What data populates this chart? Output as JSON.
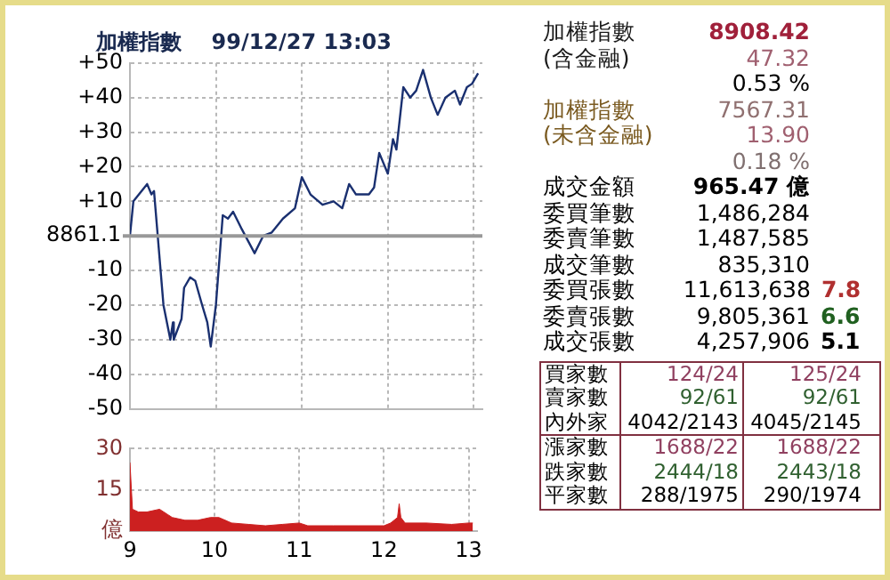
{
  "chart_data": [
    {
      "type": "line",
      "title": "加權指數    99/12/27 13:03",
      "series": [
        {
          "color": "#1a3070",
          "x": [
            9.0,
            9.04,
            9.2,
            9.25,
            9.28,
            9.39,
            9.47,
            9.5,
            9.51,
            9.6,
            9.63,
            9.7,
            9.76,
            9.84,
            9.9,
            9.94,
            10.0,
            10.08,
            10.14,
            10.2,
            10.3,
            10.45,
            10.55,
            10.65,
            10.78,
            10.92,
            11.0,
            11.1,
            11.24,
            11.37,
            11.47,
            11.55,
            11.63,
            11.78,
            11.84,
            11.9,
            12.0,
            12.06,
            12.1,
            12.18,
            12.26,
            12.33,
            12.41,
            12.5,
            12.58,
            12.67,
            12.78,
            12.84,
            12.92,
            12.98,
            13.05
          ],
          "values": [
            0,
            10,
            15,
            12,
            13,
            -20,
            -30,
            -25,
            -30,
            -24,
            -15,
            -12,
            -13,
            -20,
            -25,
            -32,
            -20,
            6,
            5,
            7,
            2,
            -5,
            0,
            1,
            5,
            8,
            17,
            12,
            9,
            10,
            8,
            15,
            12,
            12,
            14,
            24,
            18,
            28,
            25,
            43,
            40,
            42,
            48,
            40,
            35,
            40,
            42,
            38,
            43,
            44,
            47
          ]
        }
      ],
      "xlim": [
        9,
        13.1
      ],
      "xticks": [
        9,
        10,
        11,
        12,
        13
      ],
      "ylabel": "8861.1",
      "ylim": [
        -50,
        50
      ],
      "yticks": [
        {
          "value": 50,
          "label": "+50"
        },
        {
          "value": 40,
          "label": "+40"
        },
        {
          "value": 30,
          "label": "+30"
        },
        {
          "value": 20,
          "label": "+20"
        },
        {
          "value": 10,
          "label": "+10"
        },
        {
          "value": 0,
          "label": null
        },
        -10,
        -20,
        -30,
        -40,
        -50
      ],
      "ref_lines": [
        {
          "axis": "y",
          "value": 0,
          "color": "#999999"
        }
      ],
      "grid": true,
      "tick_labels": "y",
      "legend": false
    },
    {
      "type": "area",
      "series": [
        {
          "color": "#cc2020",
          "x": [
            9.0,
            9.03,
            9.1,
            9.2,
            9.35,
            9.45,
            9.5,
            9.65,
            9.8,
            9.95,
            10.05,
            10.2,
            10.4,
            10.6,
            10.8,
            11.0,
            11.1,
            11.4,
            11.7,
            12.0,
            12.08,
            12.12,
            12.16,
            12.18,
            12.2,
            12.25,
            12.5,
            12.8,
            13.0,
            13.05
          ],
          "values": [
            25,
            8,
            7,
            7,
            8,
            6,
            5,
            4,
            4,
            5,
            5,
            3,
            2.5,
            2,
            2.5,
            3,
            2,
            2,
            2,
            2,
            3,
            4,
            5,
            10,
            5,
            3,
            3,
            2.5,
            3,
            3
          ]
        }
      ],
      "xlim": [
        9,
        13.1
      ],
      "xticks": [
        9,
        10,
        11,
        12,
        13
      ],
      "ylim": [
        0,
        30
      ],
      "yticks": [
        {
          "value": 0,
          "label": "億"
        },
        15,
        30
      ],
      "grid": true,
      "legend": false
    },
    {
      "type": "other",
      "annotations": [
        "加權指數",
        "8908.42",
        "(含金融)",
        "47.32",
        "0.53 %",
        "加權指數",
        "7567.31",
        "(未含金融)",
        "13.90",
        "0.18 %",
        "成交金額",
        "965.47 億",
        "委買筆數",
        "1,486,284",
        "委賣筆數",
        "1,487,585",
        "成交筆數",
        "835,310",
        "委買張數",
        "11,613,638",
        "7.8",
        "委賣張數",
        "9,805,361",
        "6.6",
        "成交張數",
        "4,257,906",
        "5.1",
        "買家數",
        "124/24",
        "125/24",
        "賣家數",
        "92/61",
        "92/61",
        "內外家",
        "4042/2143",
        "4045/2145",
        "漲家數",
        "1688/22",
        "1688/22",
        "跌家數",
        "2444/18",
        "2443/18",
        "平家數",
        "288/1975",
        "290/1974"
      ]
    }
  ]
}
